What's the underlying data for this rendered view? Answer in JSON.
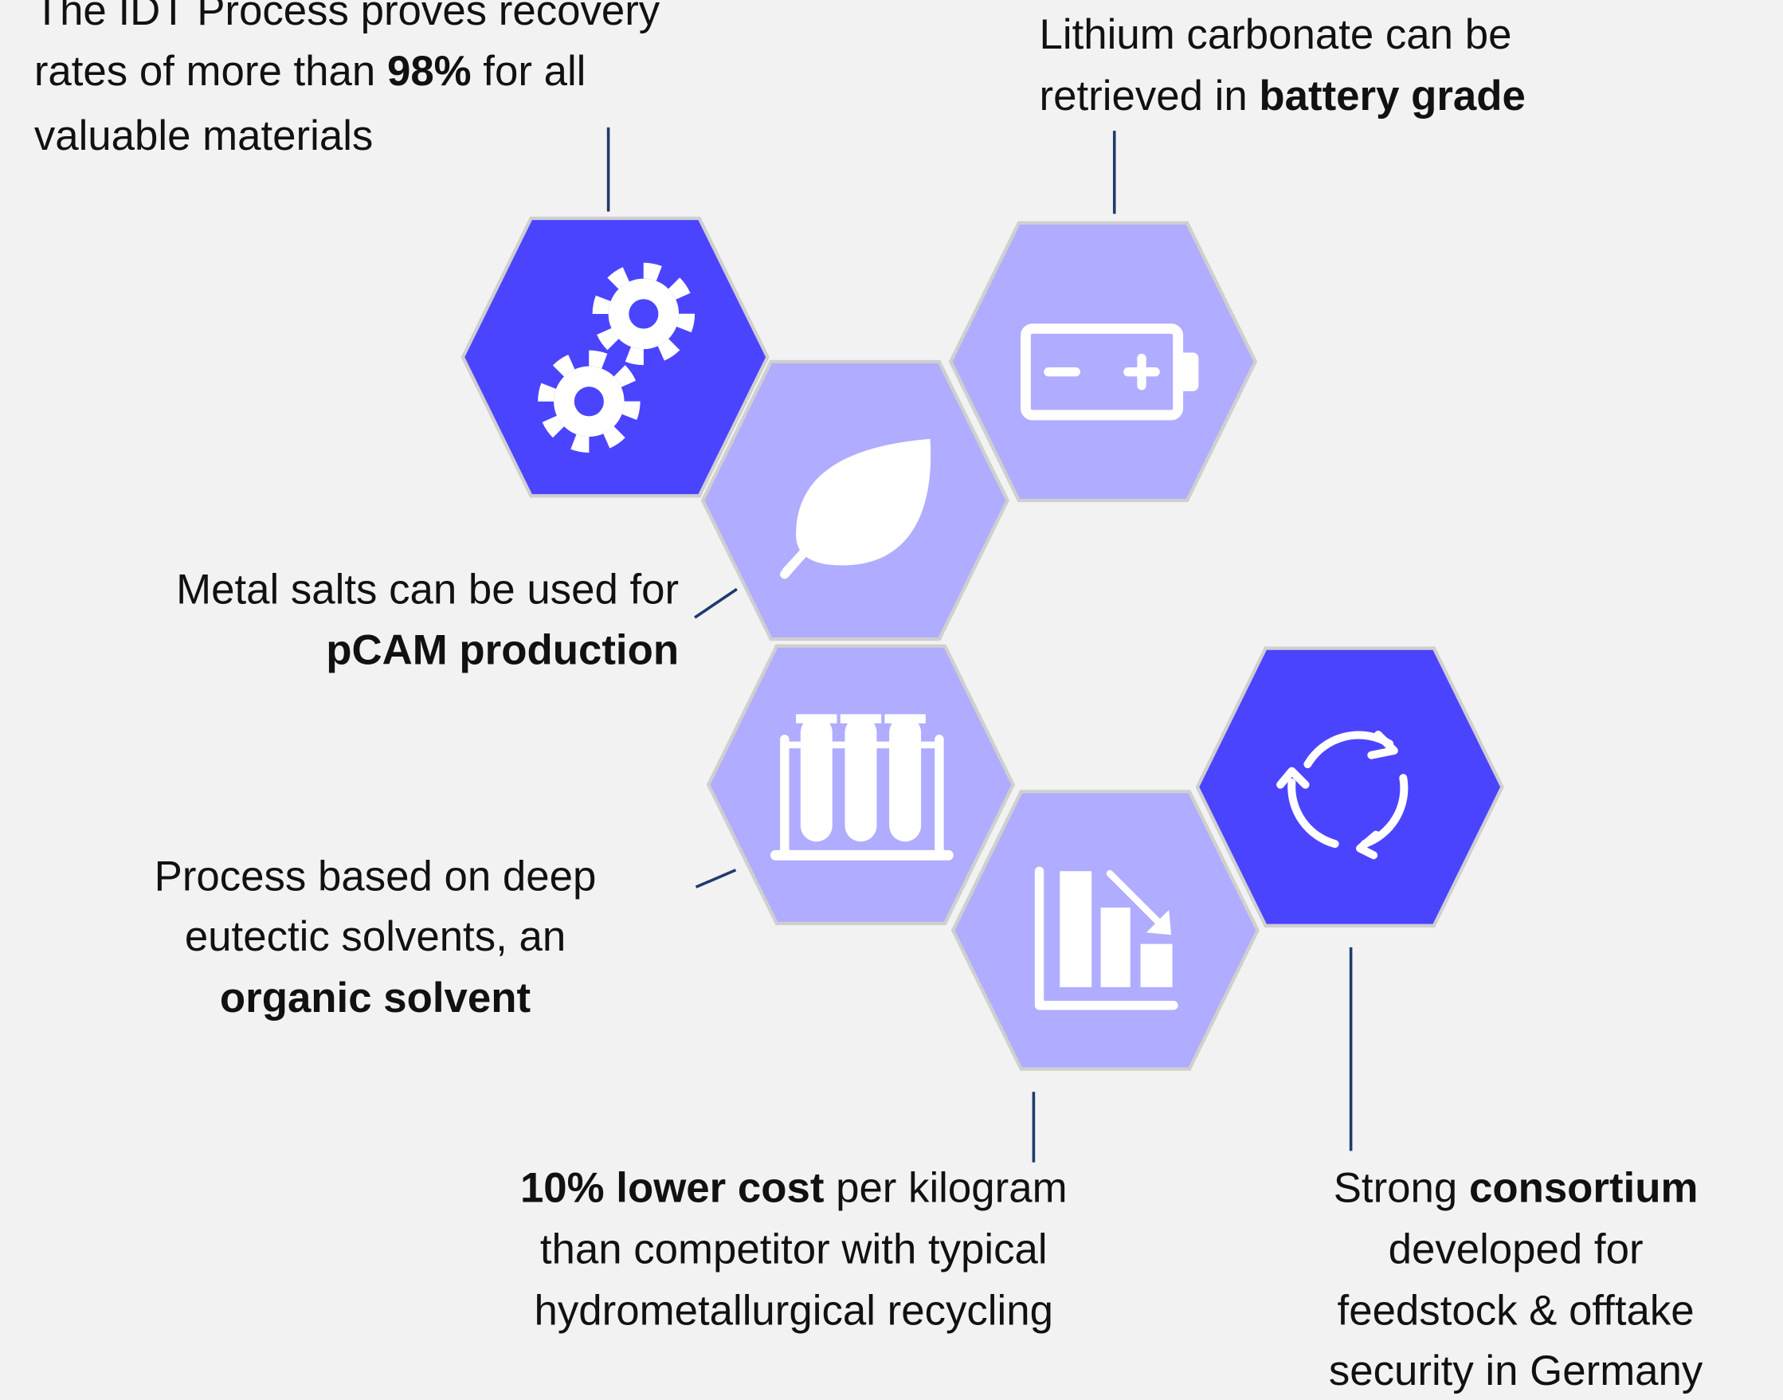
{
  "callouts": [
    {
      "lines": [
        [
          {
            "text": "The IDT Process proves recovery",
            "bold": false
          }
        ],
        [
          {
            "text": "rates of more than ",
            "bold": false
          },
          {
            "text": "98%",
            "bold": true
          },
          {
            "text": " for all",
            "bold": false
          }
        ],
        [
          {
            "text": "valuable materials",
            "bold": false
          }
        ]
      ]
    },
    {
      "lines": [
        [
          {
            "text": "Lithium carbonate can be",
            "bold": false
          }
        ],
        [
          {
            "text": "retrieved in ",
            "bold": false
          },
          {
            "text": "battery grade",
            "bold": true
          }
        ]
      ]
    },
    {
      "lines": [
        [
          {
            "text": "Metal salts can be used for",
            "bold": false
          }
        ],
        [
          {
            "text": "pCAM production",
            "bold": true
          }
        ]
      ]
    },
    {
      "lines": [
        [
          {
            "text": "Process based on deep",
            "bold": false
          }
        ],
        [
          {
            "text": "eutectic solvents, an",
            "bold": false
          }
        ],
        [
          {
            "text": "organic solvent",
            "bold": true
          }
        ]
      ]
    },
    {
      "lines": [
        [
          {
            "text": "10% lower cost",
            "bold": true
          },
          {
            "text": " per kilogram",
            "bold": false
          }
        ],
        [
          {
            "text": "than competitor with typical",
            "bold": false
          }
        ],
        [
          {
            "text": "hydrometallurgical recycling",
            "bold": false
          }
        ]
      ]
    },
    {
      "lines": [
        [
          {
            "text": "Strong ",
            "bold": false
          },
          {
            "text": "consortium",
            "bold": true
          }
        ],
        [
          {
            "text": "developed for",
            "bold": false
          }
        ],
        [
          {
            "text": "feedstock & offtake",
            "bold": false
          }
        ],
        [
          {
            "text": "security in Germany",
            "bold": false
          }
        ]
      ]
    }
  ]
}
